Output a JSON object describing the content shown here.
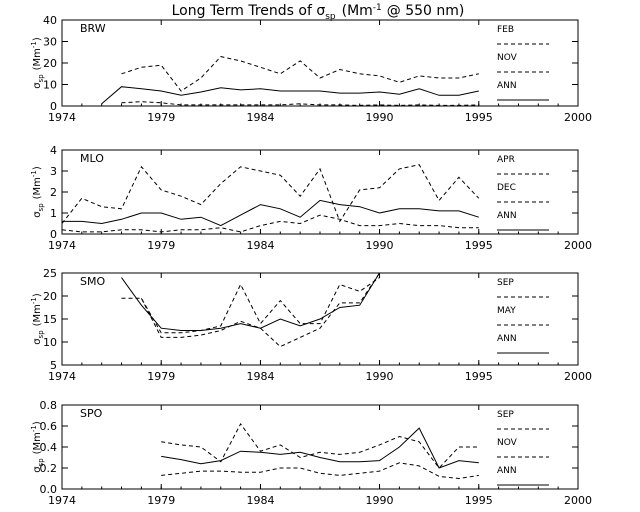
{
  "title_main": "Long Term Trends of σ",
  "title_sub": "sp",
  "title_tail": "(Mm",
  "title_sup": "-1",
  "title_end": "@ 550 nm)",
  "chart_data": [
    {
      "type": "line",
      "station": "BRW",
      "xlim": [
        1974,
        2000
      ],
      "ylim": [
        0,
        40
      ],
      "yticks": [
        "0",
        "10",
        "20",
        "30",
        "40"
      ],
      "xticks": [
        "1974",
        "1979",
        "1984",
        "1990",
        "1995",
        "2000"
      ],
      "ylabel_main": "σ",
      "ylabel_sub": "sp",
      "ylabel_unit": "(Mm",
      "ylabel_sup": "-1",
      "ylabel_close": ")",
      "series": [
        {
          "name": "FEB",
          "style": "dashed",
          "x": [
            1977,
            1978,
            1979,
            1980,
            1981,
            1982,
            1983,
            1984,
            1985,
            1986,
            1987,
            1988,
            1989,
            1990,
            1991,
            1992,
            1993,
            1994,
            1995
          ],
          "y": [
            1.5,
            2,
            1.5,
            0.5,
            0.5,
            0.5,
            0.5,
            0.5,
            0.5,
            1,
            0.5,
            0.5,
            0.3,
            0.5,
            0.3,
            0.5,
            0.3,
            0.3,
            0.5
          ]
        },
        {
          "name": "NOV",
          "style": "dashed",
          "x": [
            1977,
            1978,
            1979,
            1980,
            1981,
            1982,
            1983,
            1984,
            1985,
            1986,
            1987,
            1988,
            1989,
            1990,
            1991,
            1992,
            1993,
            1994,
            1995
          ],
          "y": [
            15,
            18,
            19,
            7,
            13,
            23,
            21,
            18,
            15,
            21,
            13,
            17,
            15,
            14,
            11,
            14,
            13,
            13,
            15
          ]
        },
        {
          "name": "ANN",
          "style": "solid",
          "x": [
            1976,
            1977,
            1978,
            1979,
            1980,
            1981,
            1982,
            1983,
            1984,
            1985,
            1986,
            1987,
            1988,
            1989,
            1990,
            1991,
            1992,
            1993,
            1994,
            1995
          ],
          "y": [
            1,
            9,
            8,
            7,
            5,
            6.5,
            8.5,
            7.5,
            8,
            7,
            7,
            7,
            6,
            6,
            6.5,
            5.5,
            8,
            5,
            5,
            7
          ]
        }
      ]
    },
    {
      "type": "line",
      "station": "MLO",
      "xlim": [
        1974,
        2000
      ],
      "ylim": [
        0,
        4
      ],
      "yticks": [
        "0",
        "1",
        "2",
        "3",
        "4"
      ],
      "xticks": [
        "1974",
        "1979",
        "1984",
        "1990",
        "1995",
        "2000"
      ],
      "ylabel_main": "σ",
      "ylabel_sub": "sp",
      "ylabel_unit": "(Mm",
      "ylabel_sup": "-1",
      "ylabel_close": ")",
      "series": [
        {
          "name": "APR",
          "style": "dashed",
          "x": [
            1974,
            1975,
            1976,
            1977,
            1978,
            1979,
            1980,
            1981,
            1982,
            1983,
            1984,
            1985,
            1986,
            1987,
            1988,
            1989,
            1990,
            1991,
            1992,
            1993,
            1994,
            1995
          ],
          "y": [
            0.5,
            1.7,
            1.3,
            1.2,
            3.2,
            2.1,
            1.8,
            1.4,
            2.4,
            3.2,
            3.0,
            2.8,
            1.8,
            3.1,
            0.6,
            2.1,
            2.2,
            3.1,
            3.3,
            1.6,
            2.7,
            1.7
          ]
        },
        {
          "name": "DEC",
          "style": "dashed",
          "x": [
            1974,
            1975,
            1976,
            1977,
            1978,
            1979,
            1980,
            1981,
            1982,
            1983,
            1984,
            1985,
            1986,
            1987,
            1988,
            1989,
            1990,
            1991,
            1992,
            1993,
            1994,
            1995
          ],
          "y": [
            0.2,
            0.1,
            0.1,
            0.2,
            0.2,
            0.1,
            0.2,
            0.2,
            0.3,
            0.1,
            0.4,
            0.6,
            0.5,
            0.9,
            0.7,
            0.4,
            0.4,
            0.5,
            0.4,
            0.4,
            0.3,
            0.3
          ]
        },
        {
          "name": "ANN",
          "style": "solid",
          "x": [
            1974,
            1975,
            1976,
            1977,
            1978,
            1979,
            1980,
            1981,
            1982,
            1983,
            1984,
            1985,
            1986,
            1987,
            1988,
            1989,
            1990,
            1991,
            1992,
            1993,
            1994,
            1995
          ],
          "y": [
            0.6,
            0.6,
            0.5,
            0.7,
            1.0,
            1.0,
            0.7,
            0.8,
            0.4,
            0.9,
            1.4,
            1.2,
            0.8,
            1.6,
            1.4,
            1.3,
            1.0,
            1.2,
            1.2,
            1.1,
            1.1,
            0.8
          ]
        }
      ]
    },
    {
      "type": "line",
      "station": "SMO",
      "xlim": [
        1974,
        2000
      ],
      "ylim": [
        5,
        25
      ],
      "yticks": [
        "5",
        "10",
        "15",
        "20",
        "25"
      ],
      "xticks": [
        "1974",
        "1979",
        "1984",
        "1990",
        "1995",
        "2000"
      ],
      "ylabel_main": "σ",
      "ylabel_sub": "sp",
      "ylabel_unit": "(Mm",
      "ylabel_sup": "-1",
      "ylabel_close": ")",
      "series": [
        {
          "name": "SEP",
          "style": "dashed",
          "x": [
            1977,
            1978,
            1979,
            1980,
            1981,
            1982,
            1983,
            1984,
            1985,
            1986,
            1987,
            1988,
            1989,
            1990
          ],
          "y": [
            19.5,
            19.5,
            12,
            12,
            12.5,
            13.5,
            22.5,
            14,
            19,
            14,
            14,
            22.5,
            21,
            24
          ]
        },
        {
          "name": "MAY",
          "style": "dashed",
          "x": [
            1978,
            1979,
            1980,
            1981,
            1982,
            1983,
            1984,
            1985,
            1986,
            1987,
            1988,
            1989,
            1990
          ],
          "y": [
            19.5,
            11,
            11,
            11.5,
            12.5,
            14.5,
            13,
            9,
            11,
            13,
            18.5,
            18.5,
            25
          ]
        },
        {
          "name": "ANN",
          "style": "solid",
          "x": [
            1977,
            1978,
            1979,
            1980,
            1981,
            1982,
            1983,
            1984,
            1985,
            1986,
            1987,
            1988,
            1989,
            1990
          ],
          "y": [
            24,
            18,
            13,
            12.5,
            12.5,
            13,
            14,
            13,
            15,
            13.5,
            15,
            17.5,
            18,
            25
          ]
        }
      ]
    },
    {
      "type": "line",
      "station": "SPO",
      "xlim": [
        1974,
        2000
      ],
      "ylim": [
        0,
        0.8
      ],
      "yticks": [
        "0.0",
        "0.2",
        "0.4",
        "0.6",
        "0.8"
      ],
      "xticks": [
        "1974",
        "1979",
        "1984",
        "1990",
        "1995",
        "2000"
      ],
      "ylabel_main": "σ",
      "ylabel_sub": "sp",
      "ylabel_unit": "(Mm",
      "ylabel_sup": "-1",
      "ylabel_close": ")",
      "series": [
        {
          "name": "SEP",
          "style": "dashed",
          "x": [
            1979,
            1980,
            1981,
            1982,
            1983,
            1984,
            1985,
            1986,
            1987,
            1988,
            1989,
            1990,
            1991,
            1992,
            1993,
            1994,
            1995
          ],
          "y": [
            0.45,
            0.42,
            0.4,
            0.26,
            0.62,
            0.36,
            0.42,
            0.3,
            0.35,
            0.33,
            0.35,
            0.42,
            0.5,
            0.45,
            0.2,
            0.4,
            0.4
          ]
        },
        {
          "name": "NOV",
          "style": "dashed",
          "x": [
            1979,
            1980,
            1981,
            1982,
            1983,
            1984,
            1985,
            1986,
            1987,
            1988,
            1989,
            1990,
            1991,
            1992,
            1993,
            1994,
            1995
          ],
          "y": [
            0.13,
            0.15,
            0.17,
            0.17,
            0.16,
            0.16,
            0.2,
            0.2,
            0.15,
            0.13,
            0.15,
            0.17,
            0.25,
            0.22,
            0.12,
            0.1,
            0.13
          ]
        },
        {
          "name": "ANN",
          "style": "solid",
          "x": [
            1979,
            1980,
            1981,
            1982,
            1983,
            1984,
            1985,
            1986,
            1987,
            1988,
            1989,
            1990,
            1991,
            1992,
            1993,
            1994,
            1995
          ],
          "y": [
            0.31,
            0.28,
            0.24,
            0.27,
            0.36,
            0.35,
            0.33,
            0.35,
            0.3,
            0.26,
            0.26,
            0.27,
            0.4,
            0.58,
            0.2,
            0.27,
            0.25
          ]
        }
      ]
    }
  ]
}
